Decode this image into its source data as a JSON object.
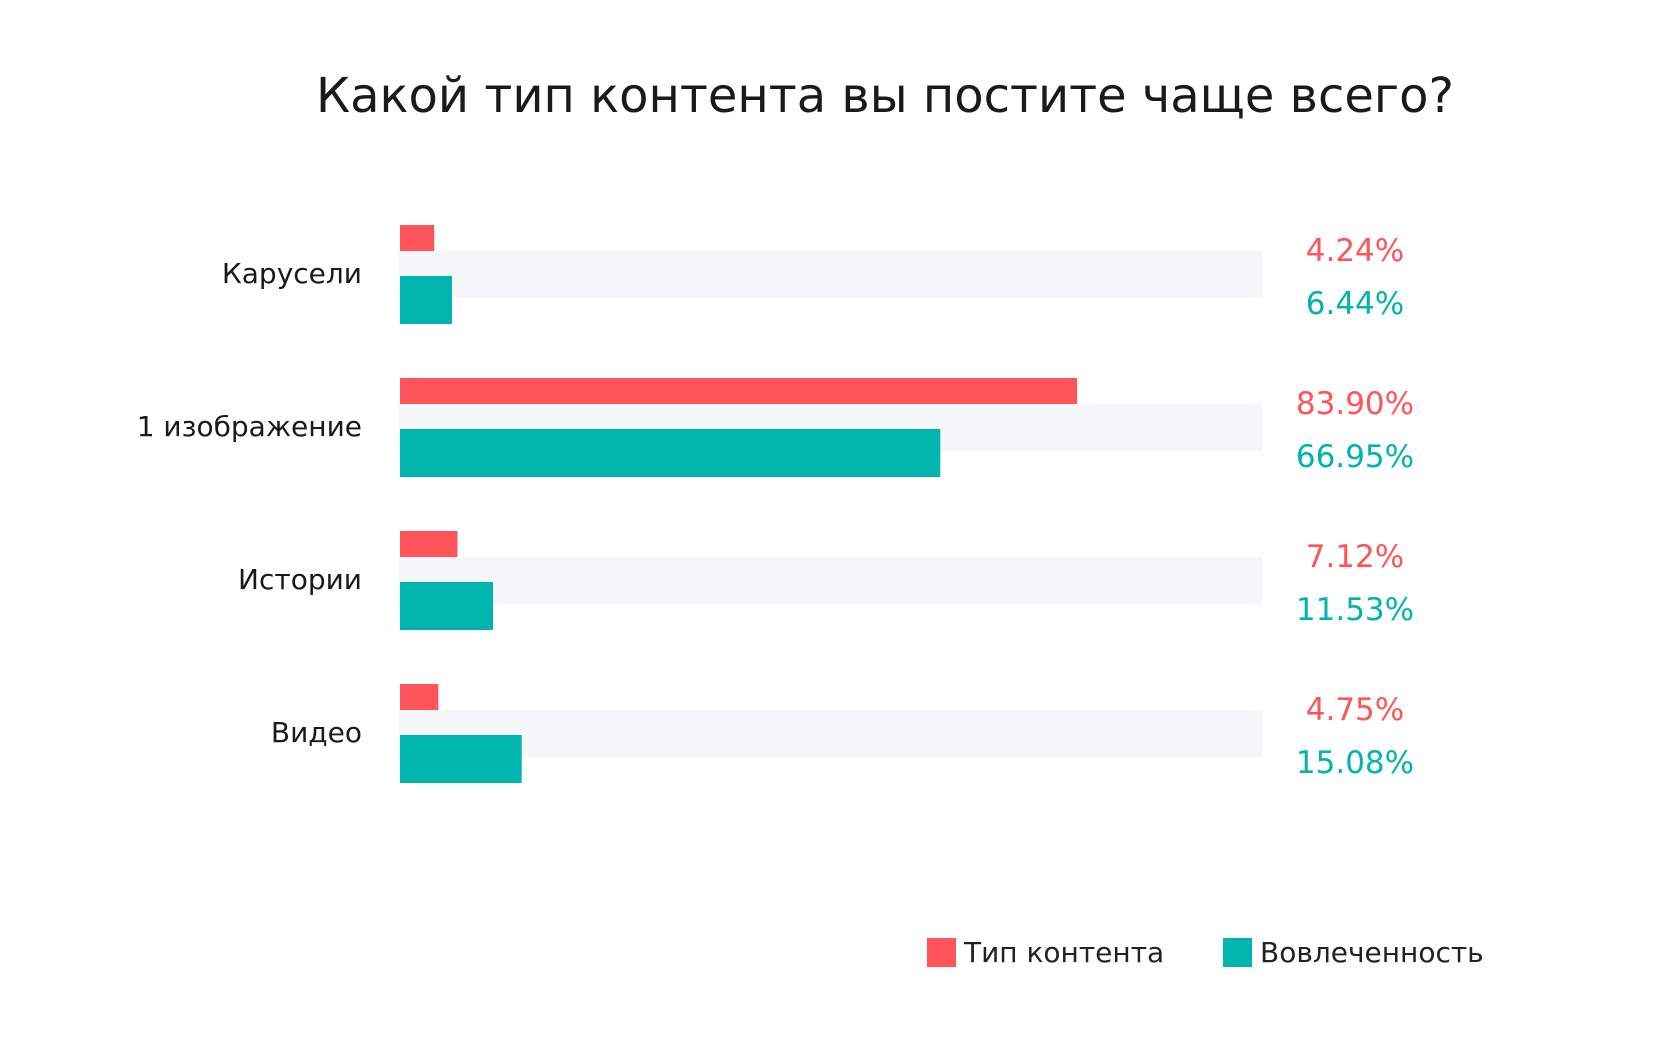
{
  "chart_data": {
    "type": "bar",
    "orientation": "horizontal",
    "title": "Какой тип контента вы постите чаще всего?",
    "categories": [
      "Карусели",
      "1 изображение",
      "Истории",
      "Видео"
    ],
    "series": [
      {
        "name": "Тип контента",
        "color": "#FF5459",
        "values": [
          4.24,
          83.9,
          7.12,
          4.75
        ],
        "labels": [
          "4.24%",
          "83.90%",
          "7.12%",
          "4.75%"
        ]
      },
      {
        "name": "Вовлеченность",
        "color": "#00B5AD",
        "values": [
          6.44,
          66.95,
          11.53,
          15.08
        ],
        "labels": [
          "6.44%",
          "66.95%",
          "11.53%",
          "15.08%"
        ]
      }
    ],
    "xlim": [
      0,
      100
    ],
    "track_color": "#F5F6FA",
    "legend_position": "bottom-right",
    "grid": false
  }
}
